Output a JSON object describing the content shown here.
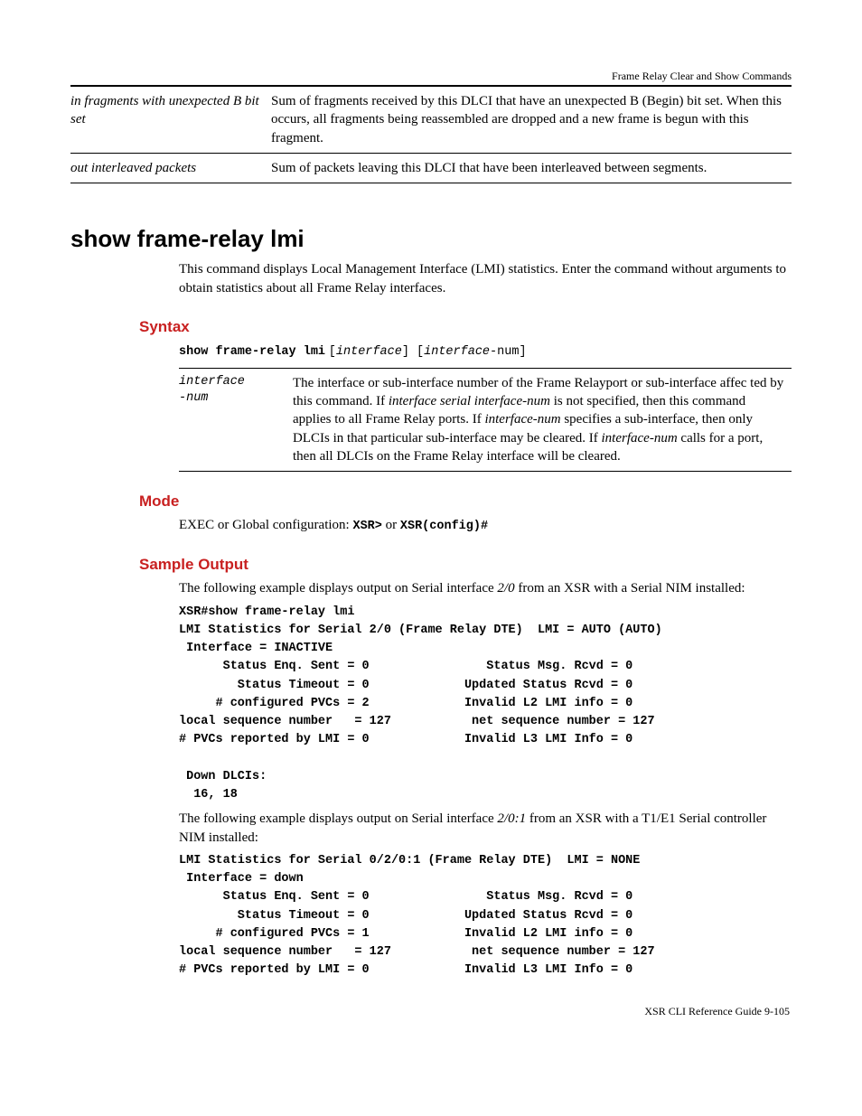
{
  "header": {
    "title": "Frame Relay Clear and Show Commands"
  },
  "top_table": {
    "rows": [
      {
        "term": "in fragments with unexpected B bit set",
        "desc": "Sum of fragments received by this DLCI that have an unexpected B (Begin) bit set. When this occurs, all fragments being reassembled are dropped and a new frame is begun with this fragment."
      },
      {
        "term": "out interleaved packets",
        "desc": "Sum of packets leaving this DLCI that have been interleaved between segments."
      }
    ]
  },
  "command": {
    "title": "show frame-relay lmi",
    "intro": "This command displays Local Management Interface (LMI) statistics. Enter the command without arguments to obtain statistics about all Frame Relay interfaces."
  },
  "syntax": {
    "heading": "Syntax",
    "cmd": "show frame-relay lmi",
    "arg1": "interface",
    "arg2": "interface",
    "arg_suffix": "-num",
    "param_name1": "interface",
    "param_name2": "-num",
    "param_desc_pre": "The interface or sub-interface number of the Frame Relayport or sub-interface affec ted by this command. If ",
    "param_desc_i1": "interface serial interface-num",
    "param_desc_mid1": " is not specified, then this command applies to all Frame Relay ports. If ",
    "param_desc_i2": "interface-num",
    "param_desc_mid2": " specifies a sub-interface, then only DLCIs in that particular sub-interface may be cleared. If ",
    "param_desc_i3": "interface-num",
    "param_desc_post": " calls for a port, then all DLCIs on the Frame Relay interface will be cleared."
  },
  "mode": {
    "heading": "Mode",
    "text_pre": "EXEC or Global configuration: ",
    "code1": "XSR>",
    "or": " or ",
    "code2": "XSR(config)#"
  },
  "sample": {
    "heading": "Sample Output",
    "intro1_pre": "The following example displays output on Serial interface ",
    "intro1_i": "2/0",
    "intro1_post": " from an XSR with a Serial NIM installed:",
    "block1": "XSR#show frame-relay lmi\nLMI Statistics for Serial 2/0 (Frame Relay DTE)  LMI = AUTO (AUTO)\n Interface = INACTIVE\n      Status Enq. Sent = 0                Status Msg. Rcvd = 0\n        Status Timeout = 0             Updated Status Rcvd = 0\n     # configured PVCs = 2             Invalid L2 LMI info = 0\nlocal sequence number   = 127           net sequence number = 127\n# PVCs reported by LMI = 0             Invalid L3 LMI Info = 0\n\n Down DLCIs:\n  16, 18",
    "intro2_pre": "The following example displays output on Serial interface ",
    "intro2_i": "2/0:1",
    "intro2_post": " from an XSR with a T1/E1 Serial controller NIM installed:",
    "block2": "LMI Statistics for Serial 0/2/0:1 (Frame Relay DTE)  LMI = NONE\n Interface = down\n      Status Enq. Sent = 0                Status Msg. Rcvd = 0\n        Status Timeout = 0             Updated Status Rcvd = 0\n     # configured PVCs = 1             Invalid L2 LMI info = 0\nlocal sequence number   = 127           net sequence number = 127\n# PVCs reported by LMI = 0             Invalid L3 LMI Info = 0"
  },
  "footer": {
    "text": "XSR CLI Reference Guide   9-105"
  }
}
